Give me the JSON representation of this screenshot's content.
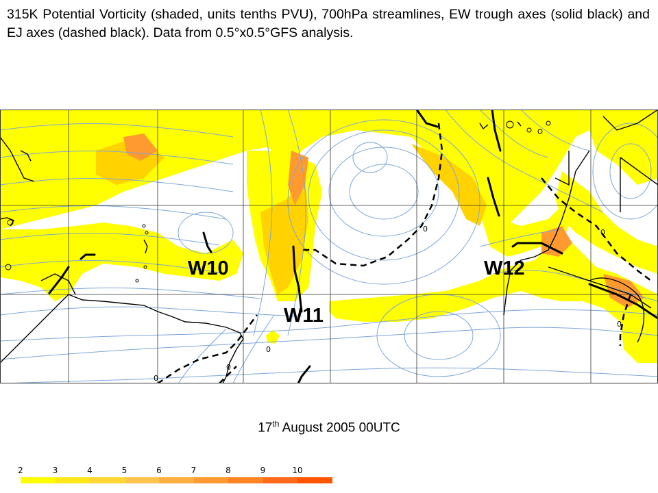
{
  "caption": "315K Potential Vorticity (shaded, units tenths PVU), 700hPa streamlines, EW trough axes (solid black) and EJ axes (dashed black). Data from 0.5°x0.5°GFS analysis.",
  "date": {
    "day": "17",
    "suffix": "th",
    "rest": " August 2005 00UTC"
  },
  "waves": [
    {
      "label": "W10"
    },
    {
      "label": "W11"
    },
    {
      "label": "W12"
    }
  ],
  "contour_zero_label": "0",
  "colorbar": {
    "ticks": [
      "2",
      "3",
      "4",
      "5",
      "6",
      "7",
      "8",
      "9",
      "10"
    ],
    "colors": [
      "#ffffff",
      "#ffff00",
      "#ffe71a",
      "#ffd733",
      "#ffc44d",
      "#ffb040",
      "#ff9a33",
      "#ff8426",
      "#ff6a1a",
      "#ff5500"
    ]
  },
  "colors": {
    "pv_low": "#ffff00",
    "pv_mid": "#ffd200",
    "pv_high": "#ff9a30",
    "streamline": "#7aa6dc",
    "coast": "#000000",
    "grid": "#333333"
  }
}
